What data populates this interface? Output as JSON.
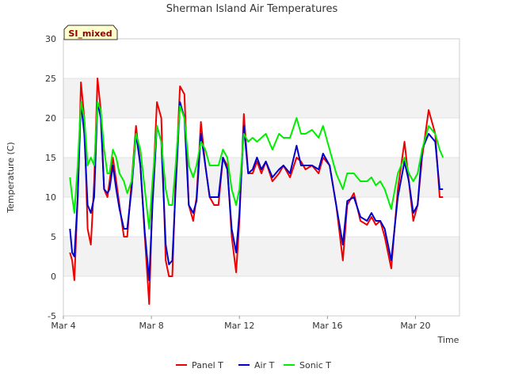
{
  "chart_data": {
    "type": "line",
    "title": "Sherman Island Air Temperatures",
    "xlabel": "Time",
    "ylabel": "Temperature (C)",
    "badge": "SI_mixed",
    "ylim": [
      -5,
      30
    ],
    "yticks": [
      -5,
      0,
      5,
      10,
      15,
      20,
      25,
      30
    ],
    "xlim": [
      4.0,
      22.0
    ],
    "xticks": [
      {
        "value": 4,
        "label": "Mar 4"
      },
      {
        "value": 8,
        "label": "Mar 8"
      },
      {
        "value": 12,
        "label": "Mar 12"
      },
      {
        "value": 16,
        "label": "Mar 16"
      },
      {
        "value": 20,
        "label": "Mar 20"
      }
    ],
    "grid": "horizontal bands",
    "legend_position": "bottom",
    "series": [
      {
        "name": "Panel T",
        "color": "#ee0000",
        "x": [
          4.3,
          4.4,
          4.5,
          4.65,
          4.8,
          4.95,
          5.1,
          5.25,
          5.4,
          5.55,
          5.7,
          5.85,
          6.0,
          6.1,
          6.25,
          6.4,
          6.55,
          6.75,
          6.9,
          7.1,
          7.3,
          7.5,
          7.7,
          7.9,
          8.05,
          8.25,
          8.45,
          8.65,
          8.8,
          8.95,
          9.1,
          9.3,
          9.5,
          9.7,
          9.9,
          10.05,
          10.25,
          10.45,
          10.65,
          10.85,
          11.05,
          11.25,
          11.45,
          11.65,
          11.85,
          12.0,
          12.2,
          12.4,
          12.6,
          12.8,
          13.0,
          13.2,
          13.5,
          13.8,
          14.0,
          14.3,
          14.6,
          14.8,
          15.0,
          15.3,
          15.6,
          15.8,
          16.1,
          16.4,
          16.7,
          16.9,
          17.2,
          17.5,
          17.8,
          18.0,
          18.2,
          18.4,
          18.6,
          18.9,
          19.2,
          19.5,
          19.7,
          19.9,
          20.1,
          20.3,
          20.6,
          20.9,
          21.1,
          21.25
        ],
        "values": [
          3,
          2,
          -0.5,
          10,
          24.5,
          20,
          6,
          4,
          12,
          25,
          21,
          11,
          10,
          12,
          15,
          12,
          9,
          5,
          5,
          12,
          19,
          14,
          5,
          -3.5,
          10,
          22,
          20,
          2,
          0,
          0,
          12,
          24,
          23,
          9,
          7,
          10,
          19.5,
          14,
          10,
          9,
          9,
          15,
          14,
          5,
          0.5,
          7,
          20.5,
          13,
          13,
          14.5,
          13,
          14.5,
          12,
          13,
          14,
          12.5,
          15,
          14.5,
          13.5,
          14,
          13,
          15,
          14,
          9,
          2,
          9,
          10.5,
          7,
          6.5,
          7.5,
          6.5,
          7,
          5,
          1,
          11,
          17,
          12,
          7,
          9,
          15,
          21,
          18,
          10,
          10
        ]
      },
      {
        "name": "Air T",
        "color": "#0000cc",
        "x": [
          4.3,
          4.4,
          4.5,
          4.65,
          4.8,
          4.95,
          5.1,
          5.25,
          5.4,
          5.55,
          5.7,
          5.85,
          6.0,
          6.1,
          6.25,
          6.4,
          6.55,
          6.75,
          6.9,
          7.1,
          7.3,
          7.5,
          7.7,
          7.9,
          8.05,
          8.25,
          8.45,
          8.65,
          8.8,
          8.95,
          9.1,
          9.3,
          9.5,
          9.7,
          9.9,
          10.05,
          10.25,
          10.45,
          10.65,
          10.85,
          11.05,
          11.25,
          11.45,
          11.65,
          11.85,
          12.0,
          12.2,
          12.4,
          12.6,
          12.8,
          13.0,
          13.2,
          13.5,
          13.8,
          14.0,
          14.3,
          14.6,
          14.8,
          15.0,
          15.3,
          15.6,
          15.8,
          16.1,
          16.4,
          16.7,
          16.9,
          17.2,
          17.5,
          17.8,
          18.0,
          18.2,
          18.4,
          18.6,
          18.9,
          19.2,
          19.5,
          19.7,
          19.9,
          20.1,
          20.3,
          20.6,
          20.9,
          21.1,
          21.25
        ],
        "values": [
          6,
          3,
          2.5,
          10,
          22,
          18,
          9,
          8,
          10,
          22,
          20,
          11,
          10.5,
          11,
          14,
          11,
          8.5,
          6,
          6,
          11,
          18,
          14,
          5.5,
          -0.5,
          9,
          19,
          17,
          4,
          1.5,
          2,
          11,
          22,
          20,
          9,
          8,
          9.5,
          18,
          14,
          10,
          10,
          10,
          15,
          13.5,
          6,
          3,
          8,
          19,
          13,
          13.5,
          15,
          13.5,
          14.5,
          12.5,
          13.5,
          14,
          13,
          16.5,
          14,
          14,
          14,
          13.5,
          15.5,
          14,
          9,
          4,
          9.5,
          10,
          7.5,
          7,
          8,
          7,
          7,
          6,
          2,
          10,
          14.5,
          12,
          8,
          9,
          16,
          18,
          17,
          11,
          11
        ]
      },
      {
        "name": "Sonic T",
        "color": "#00ee00",
        "x": [
          4.3,
          4.4,
          4.5,
          4.65,
          4.8,
          4.95,
          5.1,
          5.25,
          5.4,
          5.55,
          5.7,
          5.85,
          6.0,
          6.1,
          6.25,
          6.4,
          6.55,
          6.75,
          6.9,
          7.1,
          7.3,
          7.5,
          7.7,
          7.9,
          8.05,
          8.25,
          8.45,
          8.65,
          8.8,
          8.95,
          9.1,
          9.3,
          9.5,
          9.7,
          9.9,
          10.05,
          10.25,
          10.45,
          10.65,
          10.85,
          11.05,
          11.25,
          11.45,
          11.65,
          11.85,
          12.0,
          12.2,
          12.4,
          12.6,
          12.8,
          13.0,
          13.2,
          13.5,
          13.8,
          14.0,
          14.3,
          14.6,
          14.8,
          15.0,
          15.3,
          15.6,
          15.8,
          16.1,
          16.4,
          16.7,
          16.9,
          17.2,
          17.5,
          17.8,
          18.0,
          18.2,
          18.4,
          18.6,
          18.9,
          19.2,
          19.5,
          19.7,
          19.9,
          20.1,
          20.3,
          20.6,
          20.9,
          21.1,
          21.25
        ],
        "values": [
          12.5,
          10,
          8,
          14,
          22,
          20,
          14,
          15,
          14,
          22,
          21,
          16,
          13,
          13,
          16,
          15,
          13,
          12,
          10.5,
          12,
          18,
          16,
          11,
          6,
          12,
          19,
          17,
          11,
          9,
          9,
          14,
          21.5,
          20,
          14,
          12.5,
          14,
          17,
          16,
          14,
          14,
          14,
          16,
          15,
          11,
          9,
          11,
          18,
          17,
          17.5,
          17,
          17.5,
          18,
          16,
          18,
          17.5,
          17.5,
          20,
          18,
          18,
          18.5,
          17.5,
          19,
          16,
          13,
          11,
          13,
          13,
          12,
          12,
          12.5,
          11.5,
          12,
          11,
          8.5,
          13,
          15,
          13,
          12,
          13,
          16,
          19,
          18,
          16,
          15
        ]
      }
    ]
  }
}
